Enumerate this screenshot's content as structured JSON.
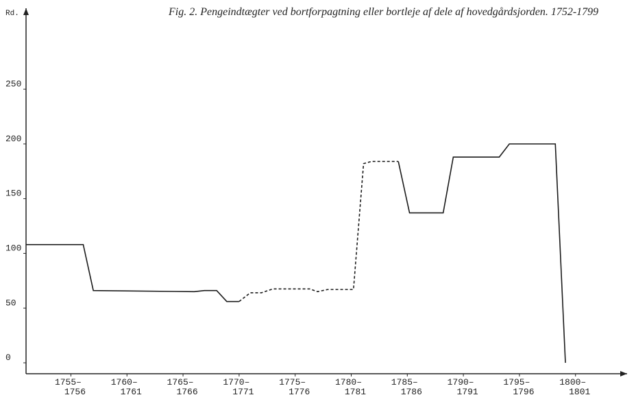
{
  "chart_data": {
    "type": "line",
    "title": "Fig. 2. Pengeindtægter ved bortforpagtning eller bortleje af dele af hovedgårdsjorden. 1752-1799",
    "y_label": "Rd.",
    "x": [
      1751,
      1756.1,
      1757,
      1766,
      1766.9,
      1768,
      1768.9,
      1770,
      1771,
      1772,
      1773,
      1776.3,
      1777,
      1777.9,
      1780.2,
      1781.1,
      1781.8,
      1784.2,
      1785.2,
      1788.2,
      1789.1,
      1793.2,
      1794.1,
      1798.2,
      1799.1
    ],
    "series": [
      {
        "color": "#1a1a1a",
        "style": "solid",
        "values": [
          108,
          108,
          66,
          65,
          66,
          66,
          56,
          56,
          null,
          null,
          null,
          null,
          null,
          null,
          null,
          null,
          null,
          184,
          137,
          137,
          188,
          188,
          200,
          200,
          0
        ]
      },
      {
        "color": "#1a1a1a",
        "style": "dashed",
        "values": [
          null,
          null,
          null,
          null,
          null,
          null,
          null,
          56,
          64,
          64,
          67.5,
          67.5,
          65,
          67,
          67,
          182,
          184,
          184,
          null,
          null,
          null,
          null,
          null,
          null,
          null
        ]
      }
    ],
    "xlim": [
      1751,
      1804.6
    ],
    "ylim": [
      -10,
      324
    ],
    "yticks": [
      0,
      50,
      100,
      150,
      200,
      250
    ],
    "xticks": [
      {
        "value": 1755,
        "label": "1755–1756"
      },
      {
        "value": 1760,
        "label": "1760–1761"
      },
      {
        "value": 1765,
        "label": "1765–1766"
      },
      {
        "value": 1770,
        "label": "1770–1771"
      },
      {
        "value": 1775,
        "label": "1775–1776"
      },
      {
        "value": 1780,
        "label": "1780–1781"
      },
      {
        "value": 1785,
        "label": "1785–1786"
      },
      {
        "value": 1790,
        "label": "1790–1791"
      },
      {
        "value": 1795,
        "label": "1795–1796"
      },
      {
        "value": 1800,
        "label": "1800–1801"
      }
    ],
    "grid": false
  }
}
